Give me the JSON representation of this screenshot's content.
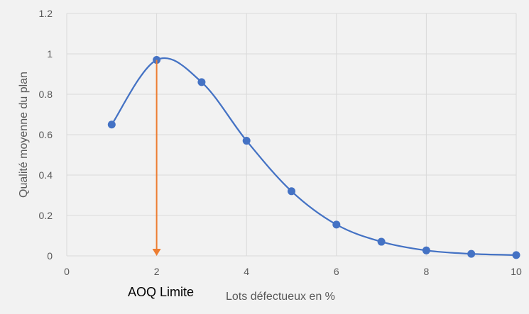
{
  "chart_data": {
    "type": "scatter",
    "xlabel": "Lots défectueux en %",
    "ylabel": "Qualité moyenne du plan",
    "xlim": [
      0,
      10
    ],
    "ylim": [
      0,
      1.2
    ],
    "x_ticks": [
      "0",
      "2",
      "4",
      "6",
      "8",
      "10"
    ],
    "y_ticks": [
      "0",
      "0.2",
      "0.4",
      "0.6",
      "0.8",
      "1",
      "1.2"
    ],
    "grid": true,
    "smoothed_line": true,
    "series": [
      {
        "x": [
          1,
          2,
          3,
          4,
          5,
          6,
          7,
          8,
          9,
          10
        ],
        "y": [
          0.65,
          0.97,
          0.86,
          0.57,
          0.32,
          0.155,
          0.07,
          0.027,
          0.01,
          0.004
        ]
      }
    ],
    "annotations": [
      {
        "text": "AOQ Limite",
        "x": 2,
        "y_from": 0.97,
        "y_to": 0,
        "style": "down-arrow"
      }
    ],
    "colors": {
      "series": "#4472c4",
      "arrow": "#ed7d31",
      "grid": "#d9d9d9",
      "background": "#f2f2f2"
    }
  }
}
